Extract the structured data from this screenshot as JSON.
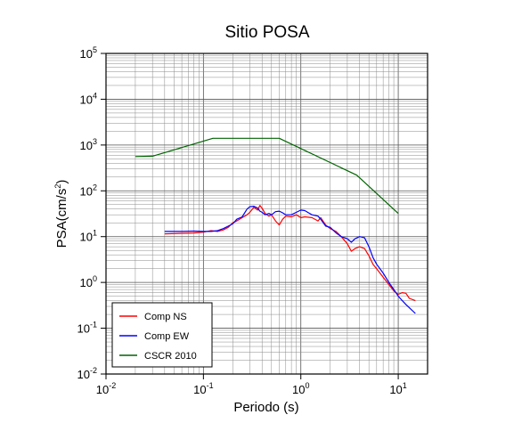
{
  "chart_data": {
    "type": "line",
    "title": "Sitio POSA",
    "xlabel": "Periodo (s)",
    "ylabel_main": "PSA(cm/s",
    "ylabel_sup": "2",
    "ylabel_tail": ")",
    "x_scale": "log",
    "y_scale": "log",
    "xlim": [
      0.01,
      20
    ],
    "ylim": [
      0.01,
      100000
    ],
    "grid": true,
    "legend_position": "bottom-left",
    "x_ticks": [
      {
        "base": "10",
        "exp": "-2",
        "value": 0.01
      },
      {
        "base": "10",
        "exp": "-1",
        "value": 0.1
      },
      {
        "base": "10",
        "exp": "0",
        "value": 1
      },
      {
        "base": "10",
        "exp": "1",
        "value": 10
      }
    ],
    "y_ticks": [
      {
        "base": "10",
        "exp": "-2",
        "value": 0.01
      },
      {
        "base": "10",
        "exp": "-1",
        "value": 0.1
      },
      {
        "base": "10",
        "exp": "0",
        "value": 1
      },
      {
        "base": "10",
        "exp": "1",
        "value": 10
      },
      {
        "base": "10",
        "exp": "2",
        "value": 100
      },
      {
        "base": "10",
        "exp": "3",
        "value": 1000
      },
      {
        "base": "10",
        "exp": "4",
        "value": 10000
      },
      {
        "base": "10",
        "exp": "5",
        "value": 100000
      }
    ],
    "series": [
      {
        "name": "Comp NS",
        "color": "#ff0000",
        "points": [
          [
            0.04,
            11.5
          ],
          [
            0.06,
            11.8
          ],
          [
            0.08,
            12.0
          ],
          [
            0.1,
            12.5
          ],
          [
            0.12,
            13.5
          ],
          [
            0.14,
            13.0
          ],
          [
            0.16,
            14.0
          ],
          [
            0.18,
            16.0
          ],
          [
            0.2,
            20.0
          ],
          [
            0.22,
            22.0
          ],
          [
            0.25,
            26.0
          ],
          [
            0.28,
            30.0
          ],
          [
            0.3,
            34.0
          ],
          [
            0.33,
            44.0
          ],
          [
            0.36,
            38.0
          ],
          [
            0.38,
            48.0
          ],
          [
            0.4,
            42.0
          ],
          [
            0.43,
            32.0
          ],
          [
            0.47,
            28.0
          ],
          [
            0.5,
            30.0
          ],
          [
            0.55,
            22.0
          ],
          [
            0.6,
            18.0
          ],
          [
            0.65,
            24.0
          ],
          [
            0.7,
            28.0
          ],
          [
            0.8,
            27.0
          ],
          [
            0.9,
            30.0
          ],
          [
            1.0,
            26.0
          ],
          [
            1.1,
            27.0
          ],
          [
            1.3,
            26.0
          ],
          [
            1.5,
            22.0
          ],
          [
            1.6,
            26.0
          ],
          [
            1.8,
            18.0
          ],
          [
            2.0,
            15.0
          ],
          [
            2.3,
            13.0
          ],
          [
            2.6,
            10.0
          ],
          [
            3.0,
            7.0
          ],
          [
            3.3,
            4.8
          ],
          [
            3.6,
            5.5
          ],
          [
            4.0,
            6.0
          ],
          [
            4.5,
            5.5
          ],
          [
            5.0,
            3.8
          ],
          [
            5.5,
            2.5
          ],
          [
            6.0,
            2.0
          ],
          [
            7.0,
            1.3
          ],
          [
            8.0,
            0.9
          ],
          [
            9.0,
            0.65
          ],
          [
            10.0,
            0.55
          ],
          [
            11.0,
            0.6
          ],
          [
            12.0,
            0.58
          ],
          [
            13.0,
            0.45
          ],
          [
            15.0,
            0.4
          ]
        ]
      },
      {
        "name": "Comp EW",
        "color": "#0000ff",
        "points": [
          [
            0.04,
            13.0
          ],
          [
            0.06,
            13.0
          ],
          [
            0.08,
            13.2
          ],
          [
            0.1,
            13.0
          ],
          [
            0.12,
            13.0
          ],
          [
            0.14,
            13.5
          ],
          [
            0.16,
            15.0
          ],
          [
            0.18,
            17.0
          ],
          [
            0.2,
            19.0
          ],
          [
            0.22,
            24.0
          ],
          [
            0.25,
            27.0
          ],
          [
            0.28,
            40.0
          ],
          [
            0.3,
            45.0
          ],
          [
            0.33,
            46.0
          ],
          [
            0.36,
            42.0
          ],
          [
            0.38,
            36.0
          ],
          [
            0.4,
            34.0
          ],
          [
            0.43,
            30.0
          ],
          [
            0.47,
            32.0
          ],
          [
            0.5,
            30.0
          ],
          [
            0.55,
            35.0
          ],
          [
            0.6,
            36.0
          ],
          [
            0.65,
            33.0
          ],
          [
            0.7,
            30.0
          ],
          [
            0.8,
            30.0
          ],
          [
            0.9,
            34.0
          ],
          [
            1.0,
            38.0
          ],
          [
            1.1,
            37.0
          ],
          [
            1.2,
            33.0
          ],
          [
            1.3,
            30.0
          ],
          [
            1.5,
            28.0
          ],
          [
            1.6,
            24.0
          ],
          [
            1.8,
            17.0
          ],
          [
            2.0,
            16.0
          ],
          [
            2.3,
            12.0
          ],
          [
            2.6,
            10.0
          ],
          [
            3.0,
            9.0
          ],
          [
            3.3,
            7.5
          ],
          [
            3.6,
            9.0
          ],
          [
            4.0,
            10.0
          ],
          [
            4.5,
            9.5
          ],
          [
            5.0,
            6.0
          ],
          [
            5.5,
            3.5
          ],
          [
            6.0,
            2.5
          ],
          [
            7.0,
            1.6
          ],
          [
            8.0,
            1.0
          ],
          [
            9.0,
            0.7
          ],
          [
            10.0,
            0.5
          ],
          [
            11.0,
            0.4
          ],
          [
            12.0,
            0.33
          ],
          [
            13.0,
            0.28
          ],
          [
            15.0,
            0.21
          ]
        ]
      },
      {
        "name": "CSCR 2010",
        "color": "#006400",
        "points": [
          [
            0.02,
            560
          ],
          [
            0.03,
            570
          ],
          [
            0.125,
            1400
          ],
          [
            0.6,
            1400
          ],
          [
            3.75,
            220
          ],
          [
            10.0,
            32
          ]
        ]
      }
    ]
  }
}
